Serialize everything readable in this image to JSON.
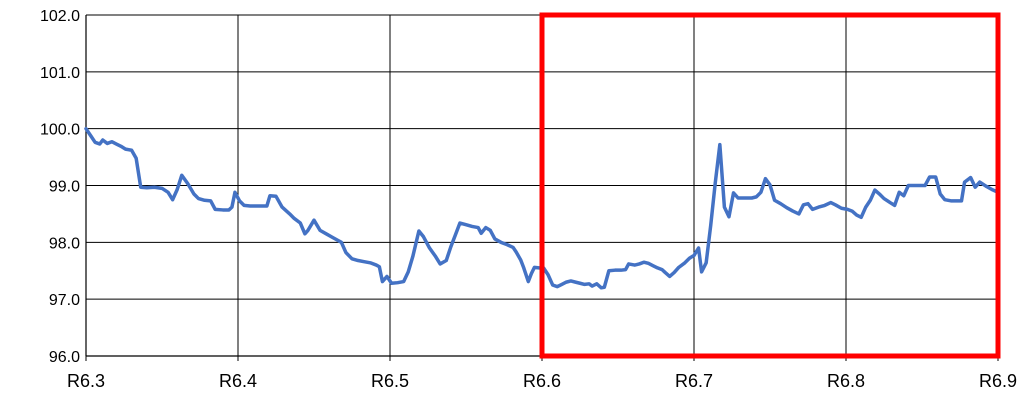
{
  "chart_data": {
    "type": "line",
    "title": "",
    "xlabel": "",
    "ylabel": "",
    "xlim": [
      6.3,
      6.9
    ],
    "ylim": [
      96.0,
      102.0
    ],
    "grid": true,
    "x_ticks": [
      {
        "value": 6.3,
        "label": "R6.3"
      },
      {
        "value": 6.4,
        "label": "R6.4"
      },
      {
        "value": 6.5,
        "label": "R6.5"
      },
      {
        "value": 6.6,
        "label": "R6.6"
      },
      {
        "value": 6.7,
        "label": "R6.7"
      },
      {
        "value": 6.8,
        "label": "R6.8"
      },
      {
        "value": 6.9,
        "label": "R6.9"
      }
    ],
    "y_ticks": [
      {
        "value": 96.0,
        "label": "96.0"
      },
      {
        "value": 97.0,
        "label": "97.0"
      },
      {
        "value": 98.0,
        "label": "98.0"
      },
      {
        "value": 99.0,
        "label": "99.0"
      },
      {
        "value": 100.0,
        "label": "100.0"
      },
      {
        "value": 101.0,
        "label": "101.0"
      },
      {
        "value": 102.0,
        "label": "102.0"
      }
    ],
    "series": [
      {
        "color": "#4472c4",
        "points": [
          [
            6.3,
            100.0
          ],
          [
            6.303,
            99.88
          ],
          [
            6.306,
            99.76
          ],
          [
            6.309,
            99.73
          ],
          [
            6.311,
            99.8
          ],
          [
            6.314,
            99.74
          ],
          [
            6.317,
            99.77
          ],
          [
            6.32,
            99.73
          ],
          [
            6.323,
            99.69
          ],
          [
            6.326,
            99.64
          ],
          [
            6.33,
            99.62
          ],
          [
            6.333,
            99.48
          ],
          [
            6.336,
            98.97
          ],
          [
            6.34,
            98.96
          ],
          [
            6.345,
            98.97
          ],
          [
            6.35,
            98.95
          ],
          [
            6.354,
            98.88
          ],
          [
            6.357,
            98.75
          ],
          [
            6.36,
            98.93
          ],
          [
            6.363,
            99.18
          ],
          [
            6.367,
            99.03
          ],
          [
            6.371,
            98.85
          ],
          [
            6.374,
            98.77
          ],
          [
            6.378,
            98.74
          ],
          [
            6.382,
            98.73
          ],
          [
            6.385,
            98.58
          ],
          [
            6.39,
            98.57
          ],
          [
            6.394,
            98.57
          ],
          [
            6.396,
            98.62
          ],
          [
            6.398,
            98.88
          ],
          [
            6.401,
            98.73
          ],
          [
            6.404,
            98.65
          ],
          [
            6.408,
            98.64
          ],
          [
            6.412,
            98.64
          ],
          [
            6.416,
            98.64
          ],
          [
            6.419,
            98.64
          ],
          [
            6.421,
            98.82
          ],
          [
            6.425,
            98.81
          ],
          [
            6.429,
            98.62
          ],
          [
            6.434,
            98.5
          ],
          [
            6.437,
            98.42
          ],
          [
            6.441,
            98.34
          ],
          [
            6.444,
            98.15
          ],
          [
            6.446,
            98.21
          ],
          [
            6.45,
            98.39
          ],
          [
            6.454,
            98.21
          ],
          [
            6.458,
            98.15
          ],
          [
            6.462,
            98.09
          ],
          [
            6.466,
            98.03
          ],
          [
            6.468,
            98.0
          ],
          [
            6.471,
            97.82
          ],
          [
            6.475,
            97.71
          ],
          [
            6.479,
            97.68
          ],
          [
            6.483,
            97.66
          ],
          [
            6.487,
            97.64
          ],
          [
            6.491,
            97.6
          ],
          [
            6.493,
            97.57
          ],
          [
            6.495,
            97.31
          ],
          [
            6.498,
            97.4
          ],
          [
            6.501,
            97.28
          ],
          [
            6.505,
            97.29
          ],
          [
            6.509,
            97.31
          ],
          [
            6.512,
            97.48
          ],
          [
            6.515,
            97.75
          ],
          [
            6.519,
            98.2
          ],
          [
            6.522,
            98.1
          ],
          [
            6.526,
            97.9
          ],
          [
            6.53,
            97.75
          ],
          [
            6.533,
            97.62
          ],
          [
            6.537,
            97.68
          ],
          [
            6.54,
            97.92
          ],
          [
            6.543,
            98.13
          ],
          [
            6.546,
            98.34
          ],
          [
            6.55,
            98.31
          ],
          [
            6.554,
            98.28
          ],
          [
            6.558,
            98.26
          ],
          [
            6.56,
            98.16
          ],
          [
            6.563,
            98.26
          ],
          [
            6.566,
            98.21
          ],
          [
            6.569,
            98.06
          ],
          [
            6.573,
            98.0
          ],
          [
            6.577,
            97.96
          ],
          [
            6.581,
            97.91
          ],
          [
            6.583,
            97.83
          ],
          [
            6.586,
            97.69
          ],
          [
            6.588,
            97.55
          ],
          [
            6.591,
            97.31
          ],
          [
            6.593,
            97.45
          ],
          [
            6.595,
            97.56
          ],
          [
            6.598,
            97.55
          ],
          [
            6.601,
            97.55
          ],
          [
            6.604,
            97.43
          ],
          [
            6.607,
            97.25
          ],
          [
            6.61,
            97.22
          ],
          [
            6.613,
            97.26
          ],
          [
            6.616,
            97.3
          ],
          [
            6.619,
            97.32
          ],
          [
            6.622,
            97.3
          ],
          [
            6.625,
            97.28
          ],
          [
            6.628,
            97.26
          ],
          [
            6.631,
            97.27
          ],
          [
            6.633,
            97.23
          ],
          [
            6.636,
            97.27
          ],
          [
            6.639,
            97.2
          ],
          [
            6.641,
            97.21
          ],
          [
            6.644,
            97.5
          ],
          [
            6.648,
            97.51
          ],
          [
            6.652,
            97.51
          ],
          [
            6.655,
            97.52
          ],
          [
            6.657,
            97.62
          ],
          [
            6.661,
            97.6
          ],
          [
            6.664,
            97.62
          ],
          [
            6.667,
            97.65
          ],
          [
            6.67,
            97.63
          ],
          [
            6.673,
            97.59
          ],
          [
            6.676,
            97.55
          ],
          [
            6.679,
            97.52
          ],
          [
            6.681,
            97.47
          ],
          [
            6.684,
            97.4
          ],
          [
            6.687,
            97.47
          ],
          [
            6.69,
            97.56
          ],
          [
            6.694,
            97.64
          ],
          [
            6.697,
            97.72
          ],
          [
            6.7,
            97.77
          ],
          [
            6.703,
            97.9
          ],
          [
            6.705,
            97.48
          ],
          [
            6.708,
            97.64
          ],
          [
            6.711,
            98.3
          ],
          [
            6.714,
            99.05
          ],
          [
            6.717,
            99.72
          ],
          [
            6.72,
            98.62
          ],
          [
            6.723,
            98.45
          ],
          [
            6.726,
            98.87
          ],
          [
            6.729,
            98.78
          ],
          [
            6.732,
            98.78
          ],
          [
            6.735,
            98.78
          ],
          [
            6.738,
            98.78
          ],
          [
            6.741,
            98.8
          ],
          [
            6.744,
            98.88
          ],
          [
            6.747,
            99.12
          ],
          [
            6.75,
            99.01
          ],
          [
            6.753,
            98.74
          ],
          [
            6.757,
            98.68
          ],
          [
            6.761,
            98.61
          ],
          [
            6.765,
            98.55
          ],
          [
            6.769,
            98.5
          ],
          [
            6.772,
            98.66
          ],
          [
            6.775,
            98.68
          ],
          [
            6.778,
            98.58
          ],
          [
            6.782,
            98.62
          ],
          [
            6.786,
            98.65
          ],
          [
            6.79,
            98.7
          ],
          [
            6.793,
            98.66
          ],
          [
            6.797,
            98.6
          ],
          [
            6.801,
            98.58
          ],
          [
            6.804,
            98.55
          ],
          [
            6.807,
            98.48
          ],
          [
            6.81,
            98.44
          ],
          [
            6.813,
            98.62
          ],
          [
            6.816,
            98.74
          ],
          [
            6.819,
            98.92
          ],
          [
            6.822,
            98.85
          ],
          [
            6.825,
            98.77
          ],
          [
            6.829,
            98.7
          ],
          [
            6.832,
            98.65
          ],
          [
            6.835,
            98.88
          ],
          [
            6.838,
            98.82
          ],
          [
            6.841,
            99.0
          ],
          [
            6.845,
            99.0
          ],
          [
            6.849,
            99.0
          ],
          [
            6.852,
            99.0
          ],
          [
            6.855,
            99.15
          ],
          [
            6.859,
            99.15
          ],
          [
            6.862,
            98.85
          ],
          [
            6.865,
            98.75
          ],
          [
            6.869,
            98.73
          ],
          [
            6.873,
            98.73
          ],
          [
            6.876,
            98.73
          ],
          [
            6.878,
            99.06
          ],
          [
            6.882,
            99.14
          ],
          [
            6.885,
            98.97
          ],
          [
            6.888,
            99.06
          ],
          [
            6.892,
            98.99
          ],
          [
            6.896,
            98.93
          ],
          [
            6.9,
            98.88
          ]
        ]
      }
    ],
    "highlight": {
      "shape": "rectangle",
      "color": "#ff0000",
      "x_range": [
        6.6,
        6.9
      ],
      "y_range": [
        96.0,
        102.0
      ]
    }
  }
}
